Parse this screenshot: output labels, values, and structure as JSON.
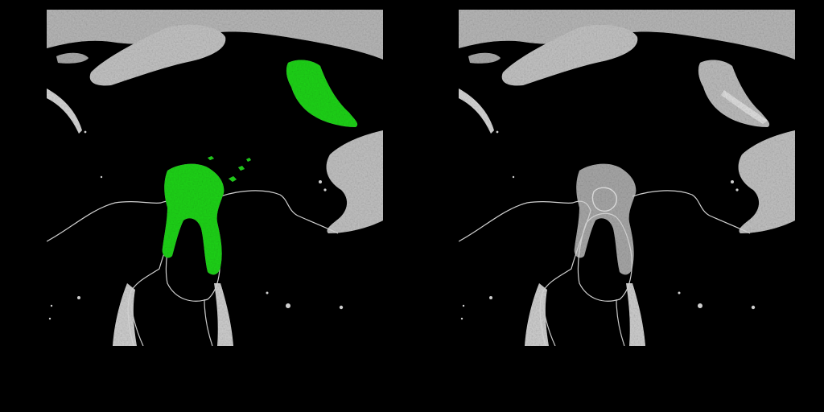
{
  "figure": {
    "panels": [
      {
        "name": "overlay",
        "has_segmentation": true
      },
      {
        "name": "original",
        "has_segmentation": false
      }
    ],
    "background_color": "#000000",
    "tissue_color": "#bdbdbd",
    "bright_tissue_color": "#e8e8e8",
    "segmentation_color": "#22d81a"
  }
}
